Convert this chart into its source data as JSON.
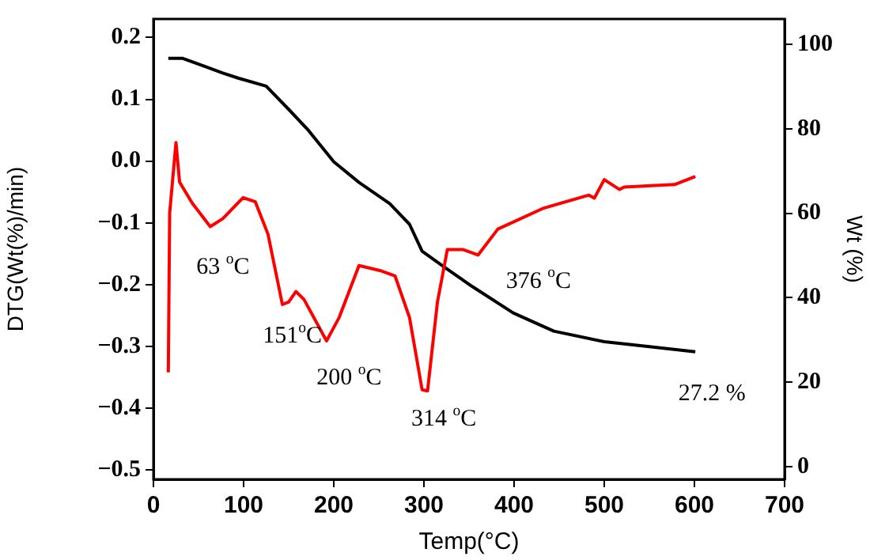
{
  "chart_data": {
    "type": "line",
    "xlabel": "Temp(°C)",
    "ylabel": "DTG(Wt(%)/min)",
    "y2label": "Wt (%)",
    "xlim": [
      0,
      700
    ],
    "xticks": [
      0,
      100,
      200,
      300,
      400,
      500,
      600,
      700
    ],
    "ylim": [
      -0.515,
      0.23
    ],
    "yticks": [
      {
        "value": 0.2,
        "label": "0.2"
      },
      {
        "value": 0.1,
        "label": "0.1"
      },
      {
        "value": 0,
        "label": "0.0"
      },
      {
        "value": -0.1,
        "label": "−0.1"
      },
      {
        "value": -0.2,
        "label": "−0.2"
      },
      {
        "value": -0.3,
        "label": "−0.3"
      },
      {
        "value": -0.4,
        "label": "−0.4"
      },
      {
        "value": -0.5,
        "label": "−0.5"
      }
    ],
    "y2lim": [
      -3,
      106
    ],
    "y2ticks": [
      0,
      20,
      40,
      60,
      80,
      100
    ],
    "grid": false,
    "legend": false,
    "marker": "none",
    "line_style": "solid",
    "series": [
      {
        "color": "#ff0000",
        "x": [
          16.5,
          18,
          25,
          29,
          43,
          63,
          77,
          99.5,
          113,
          127,
          143,
          150,
          158,
          167,
          192,
          206,
          228,
          251,
          268,
          284,
          298,
          304,
          315,
          326,
          343,
          360,
          382,
          433,
          483,
          489,
          500,
          517,
          522,
          578,
          601
        ],
        "values": [
          -0.342,
          -0.084,
          0.03,
          -0.034,
          -0.068,
          -0.106,
          -0.093,
          -0.059,
          -0.066,
          -0.118,
          -0.232,
          -0.228,
          -0.211,
          -0.224,
          -0.291,
          -0.253,
          -0.169,
          -0.177,
          -0.186,
          -0.253,
          -0.37,
          -0.372,
          -0.228,
          -0.143,
          -0.143,
          -0.152,
          -0.11,
          -0.076,
          -0.055,
          -0.06,
          -0.03,
          -0.046,
          -0.042,
          -0.038,
          -0.025
        ]
      },
      {
        "color": "#000000",
        "axis": "y2",
        "x": [
          16.5,
          32,
          77,
          94,
          125,
          150,
          172,
          200,
          228,
          262,
          284,
          298,
          321,
          354,
          399,
          444,
          500,
          550,
          601
        ],
        "values": [
          96.7,
          96.7,
          93.2,
          92,
          90.1,
          84.6,
          79.6,
          72.2,
          67.3,
          62.3,
          57.4,
          51,
          47.5,
          42.6,
          36.4,
          32.1,
          29.6,
          28.4,
          27.2
        ]
      }
    ],
    "annotations": [
      "63 $^{o}$C",
      "151$^{o}$C",
      "200 $^{o}$C",
      "314 $^{o}$C",
      "376 $^{o}$C",
      "27.2 %"
    ]
  }
}
